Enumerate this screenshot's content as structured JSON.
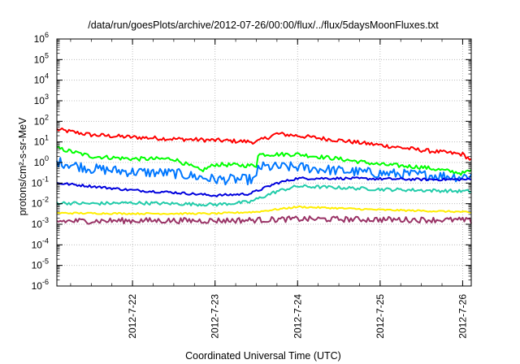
{
  "chart_data": {
    "type": "line",
    "title": "/data/run/goesPlots/archive/2012-07-26/00:00/flux/../flux/5daysMoonFluxes.txt",
    "xlabel": "Coordinated Universal Time (UTC)",
    "ylabel": "protons/cm²-s-sr-MeV",
    "y_scale": "log",
    "ylim_exponents": [
      -6,
      6
    ],
    "y_tick_exponents": [
      -6,
      -5,
      -4,
      -3,
      -2,
      -1,
      0,
      1,
      2,
      3,
      4,
      5,
      6
    ],
    "x_domain_days": [
      "2012-07-21T02:00",
      "2012-07-26T02:30"
    ],
    "x_ticks": [
      {
        "label": "2012-7-22",
        "date": "2012-07-22"
      },
      {
        "label": "2012-7-23",
        "date": "2012-07-23"
      },
      {
        "label": "2012-7-24",
        "date": "2012-07-24"
      },
      {
        "label": "2012-7-25",
        "date": "2012-07-25"
      },
      {
        "label": "2012-7-26",
        "date": "2012-07-26"
      }
    ],
    "grid": true,
    "series": [
      {
        "color": "#ff0000",
        "noise": 0.1,
        "points": [
          [
            "2012-07-21T02:00",
            40
          ],
          [
            "2012-07-21T12:00",
            22
          ],
          [
            "2012-07-22T00:00",
            17
          ],
          [
            "2012-07-22T12:00",
            14
          ],
          [
            "2012-07-23T00:00",
            12
          ],
          [
            "2012-07-23T12:00",
            10
          ],
          [
            "2012-07-23T18:00",
            25
          ],
          [
            "2012-07-24T00:00",
            20
          ],
          [
            "2012-07-24T12:00",
            12
          ],
          [
            "2012-07-25T00:00",
            7
          ],
          [
            "2012-07-25T12:00",
            4
          ],
          [
            "2012-07-26T00:00",
            2.5
          ],
          [
            "2012-07-26T02:30",
            1.3
          ]
        ]
      },
      {
        "color": "#00ff00",
        "noise": 0.1,
        "points": [
          [
            "2012-07-21T02:00",
            5
          ],
          [
            "2012-07-21T12:00",
            2
          ],
          [
            "2012-07-22T00:00",
            1.5
          ],
          [
            "2012-07-22T12:00",
            1.5
          ],
          [
            "2012-07-22T20:00",
            0.4
          ],
          [
            "2012-07-23T00:00",
            0.8
          ],
          [
            "2012-07-23T12:00",
            0.7
          ],
          [
            "2012-07-23T12:30",
            2.5
          ],
          [
            "2012-07-24T00:00",
            2.5
          ],
          [
            "2012-07-24T12:00",
            1.5
          ],
          [
            "2012-07-25T00:00",
            0.8
          ],
          [
            "2012-07-25T12:00",
            0.6
          ],
          [
            "2012-07-26T00:00",
            0.3
          ],
          [
            "2012-07-26T02:30",
            0.4
          ]
        ]
      },
      {
        "color": "#0077ff",
        "noise": 0.25,
        "points": [
          [
            "2012-07-21T02:00",
            1.1
          ],
          [
            "2012-07-21T12:00",
            0.5
          ],
          [
            "2012-07-22T00:00",
            0.35
          ],
          [
            "2012-07-22T12:00",
            0.3
          ],
          [
            "2012-07-23T00:00",
            0.15
          ],
          [
            "2012-07-23T12:00",
            0.15
          ],
          [
            "2012-07-23T12:30",
            0.6
          ],
          [
            "2012-07-24T00:00",
            0.6
          ],
          [
            "2012-07-24T12:00",
            0.4
          ],
          [
            "2012-07-25T00:00",
            0.3
          ],
          [
            "2012-07-25T12:00",
            0.25
          ],
          [
            "2012-07-26T00:00",
            0.2
          ],
          [
            "2012-07-26T02:30",
            0.25
          ]
        ]
      },
      {
        "color": "#0000dd",
        "noise": 0.06,
        "points": [
          [
            "2012-07-21T02:00",
            0.1
          ],
          [
            "2012-07-21T12:00",
            0.07
          ],
          [
            "2012-07-22T00:00",
            0.045
          ],
          [
            "2012-07-22T12:00",
            0.035
          ],
          [
            "2012-07-23T00:00",
            0.025
          ],
          [
            "2012-07-23T10:00",
            0.03
          ],
          [
            "2012-07-23T18:00",
            0.1
          ],
          [
            "2012-07-24T00:00",
            0.17
          ],
          [
            "2012-07-24T12:00",
            0.17
          ],
          [
            "2012-07-25T00:00",
            0.16
          ],
          [
            "2012-07-25T12:00",
            0.15
          ],
          [
            "2012-07-26T00:00",
            0.15
          ],
          [
            "2012-07-26T02:30",
            0.15
          ]
        ]
      },
      {
        "color": "#22ccaa",
        "noise": 0.08,
        "points": [
          [
            "2012-07-21T02:00",
            0.011
          ],
          [
            "2012-07-21T12:00",
            0.01
          ],
          [
            "2012-07-22T00:00",
            0.011
          ],
          [
            "2012-07-22T12:00",
            0.01
          ],
          [
            "2012-07-23T00:00",
            0.009
          ],
          [
            "2012-07-23T10:00",
            0.012
          ],
          [
            "2012-07-23T18:00",
            0.04
          ],
          [
            "2012-07-24T00:00",
            0.07
          ],
          [
            "2012-07-24T12:00",
            0.06
          ],
          [
            "2012-07-25T00:00",
            0.05
          ],
          [
            "2012-07-25T12:00",
            0.045
          ],
          [
            "2012-07-26T00:00",
            0.04
          ],
          [
            "2012-07-26T02:30",
            0.04
          ]
        ]
      },
      {
        "color": "#ffee00",
        "noise": 0.04,
        "points": [
          [
            "2012-07-21T02:00",
            0.0035
          ],
          [
            "2012-07-22T00:00",
            0.0033
          ],
          [
            "2012-07-23T00:00",
            0.0033
          ],
          [
            "2012-07-23T12:00",
            0.004
          ],
          [
            "2012-07-24T00:00",
            0.007
          ],
          [
            "2012-07-24T12:00",
            0.006
          ],
          [
            "2012-07-25T00:00",
            0.005
          ],
          [
            "2012-07-25T12:00",
            0.0045
          ],
          [
            "2012-07-26T00:00",
            0.004
          ],
          [
            "2012-07-26T02:30",
            0.0035
          ]
        ]
      },
      {
        "color": "#993366",
        "noise": 0.14,
        "points": [
          [
            "2012-07-21T02:00",
            0.0014
          ],
          [
            "2012-07-22T00:00",
            0.0015
          ],
          [
            "2012-07-23T00:00",
            0.0015
          ],
          [
            "2012-07-23T12:00",
            0.0016
          ],
          [
            "2012-07-24T00:00",
            0.0018
          ],
          [
            "2012-07-25T00:00",
            0.0017
          ],
          [
            "2012-07-26T00:00",
            0.0016
          ],
          [
            "2012-07-26T02:30",
            0.0014
          ]
        ]
      }
    ]
  }
}
